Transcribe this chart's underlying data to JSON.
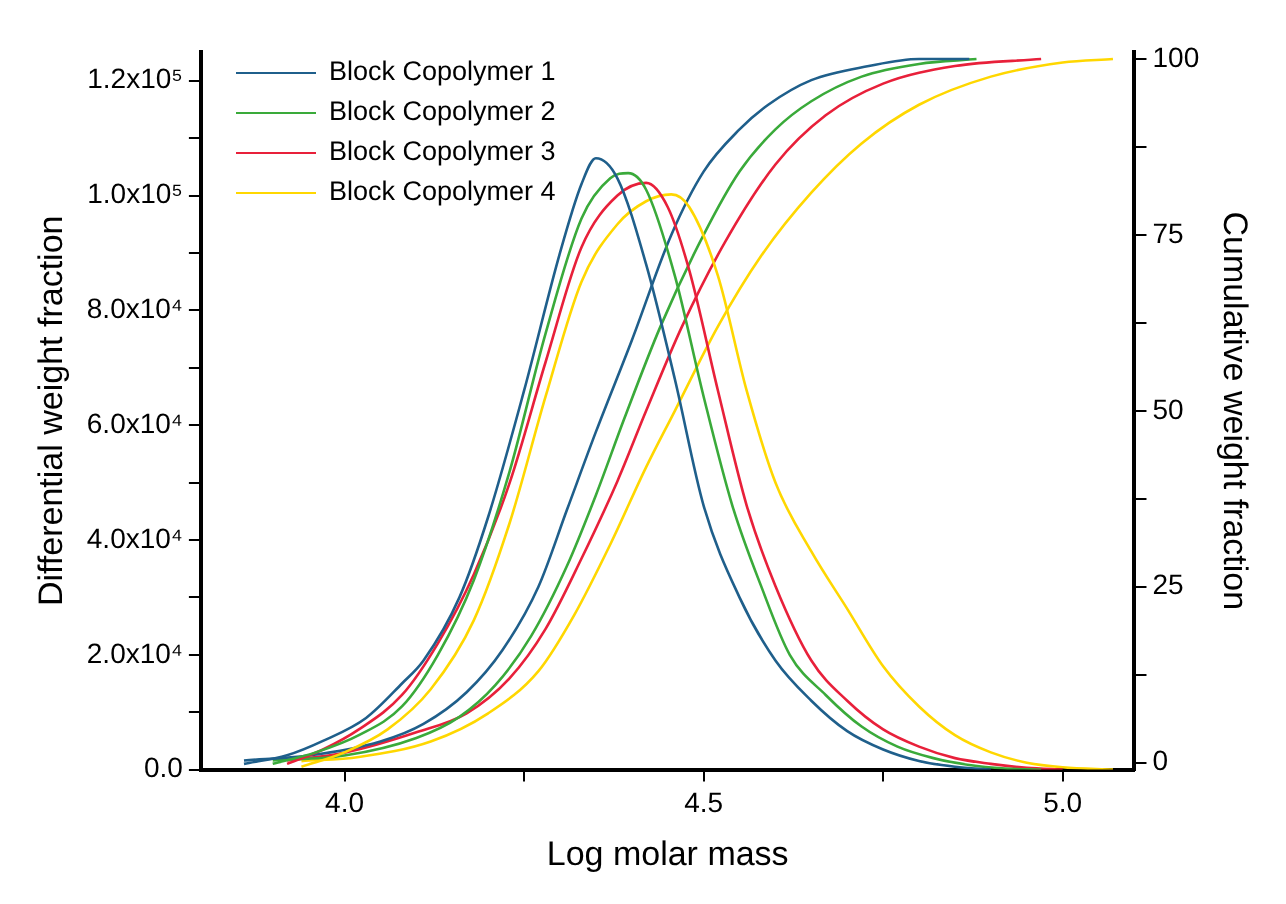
{
  "chart_data": {
    "type": "line",
    "xlabel": "Log molar mass",
    "ylabel": "Differential weight fraction",
    "y2label": "Cumulative weight fraction",
    "xlim": [
      3.8,
      5.1
    ],
    "xticks": [
      {
        "value": 4,
        "label": "4.0"
      },
      {
        "value": 4.25,
        "label": null
      },
      {
        "value": 4.5,
        "label": "4.5"
      },
      {
        "value": 4.75,
        "label": null
      },
      {
        "value": 5,
        "label": "5.0"
      }
    ],
    "ylim": [
      0,
      125000
    ],
    "yticks": [
      {
        "value": 0,
        "label": "0.0"
      },
      {
        "value": 10000,
        "label": null
      },
      {
        "value": 20000,
        "label": "2.0x10⁴"
      },
      {
        "value": 30000,
        "label": null
      },
      {
        "value": 40000,
        "label": "4.0x10⁴"
      },
      {
        "value": 50000,
        "label": null
      },
      {
        "value": 60000,
        "label": "6.0x10⁴"
      },
      {
        "value": 70000,
        "label": null
      },
      {
        "value": 80000,
        "label": "8.0x10⁴"
      },
      {
        "value": 90000,
        "label": null
      },
      {
        "value": 100000,
        "label": "1.0x10⁵"
      },
      {
        "value": 110000,
        "label": null
      },
      {
        "value": 120000,
        "label": "1.2x10⁵"
      }
    ],
    "y2lim": [
      -1,
      101
    ],
    "y2ticks": [
      0,
      {
        "value": 12.5,
        "label": null
      },
      25,
      {
        "value": 37.5,
        "label": null
      },
      50,
      {
        "value": 62.5,
        "label": null
      },
      75,
      {
        "value": 87.5,
        "label": null
      },
      100
    ],
    "grid": false,
    "legend": "top left",
    "marker": "none",
    "line_style": "solid",
    "series": [
      {
        "name": "Block Copolymer 1",
        "color": "#1f5f8b",
        "x": [
          3.86,
          3.92,
          3.97,
          4.03,
          4.08,
          4.11,
          4.16,
          4.2,
          4.25,
          4.3,
          4.33,
          4.35,
          4.38,
          4.42,
          4.46,
          4.5,
          4.55,
          4.6,
          4.65,
          4.7,
          4.75,
          4.8,
          4.85,
          4.9
        ],
        "values": [
          1000,
          2500,
          5000,
          9000,
          15000,
          19000,
          30000,
          44000,
          66000,
          90000,
          102000,
          106500,
          103000,
          88000,
          68000,
          46000,
          30000,
          19000,
          12000,
          6700,
          3500,
          1500,
          500,
          0
        ]
      },
      {
        "name": "Block Copolymer 2",
        "color": "#3aaa3a",
        "x": [
          3.9,
          3.96,
          4.02,
          4.08,
          4.13,
          4.18,
          4.23,
          4.28,
          4.33,
          4.37,
          4.395,
          4.42,
          4.46,
          4.5,
          4.54,
          4.58,
          4.62,
          4.67,
          4.72,
          4.77,
          4.82,
          4.87,
          4.92,
          4.97
        ],
        "values": [
          1000,
          3000,
          6000,
          11000,
          20000,
          33000,
          52000,
          76000,
          96000,
          103000,
          103900,
          101000,
          86000,
          65000,
          46000,
          32000,
          20000,
          13000,
          7500,
          4000,
          2000,
          800,
          200,
          0
        ]
      },
      {
        "name": "Block Copolymer 3",
        "color": "#e8203a",
        "x": [
          3.92,
          3.97,
          4.02,
          4.08,
          4.13,
          4.18,
          4.23,
          4.28,
          4.33,
          4.38,
          4.42,
          4.45,
          4.48,
          4.52,
          4.56,
          4.6,
          4.65,
          4.7,
          4.75,
          4.8,
          4.85,
          4.9,
          4.95,
          5.0
        ],
        "values": [
          1000,
          3500,
          7000,
          13000,
          22000,
          34000,
          50000,
          71000,
          91000,
          100000,
          102200,
          98000,
          87000,
          66000,
          46000,
          32000,
          19000,
          12000,
          7000,
          4000,
          2000,
          1000,
          300,
          0
        ]
      },
      {
        "name": "Block Copolymer 4",
        "color": "#ffd700",
        "x": [
          3.94,
          4.0,
          4.06,
          4.12,
          4.18,
          4.23,
          4.28,
          4.33,
          4.38,
          4.42,
          4.455,
          4.48,
          4.52,
          4.56,
          4.6,
          4.65,
          4.7,
          4.75,
          4.8,
          4.85,
          4.9,
          4.95,
          5.0,
          5.07
        ],
        "values": [
          500,
          3000,
          7000,
          14000,
          26000,
          43000,
          65000,
          85000,
          95000,
          99000,
          100200,
          98000,
          86000,
          66000,
          50000,
          38000,
          28000,
          18000,
          11000,
          6000,
          3000,
          1200,
          400,
          0
        ]
      },
      {
        "axis": "y2",
        "color": "#1f5f8b",
        "x": [
          3.86,
          3.95,
          4.05,
          4.11,
          4.17,
          4.22,
          4.27,
          4.31,
          4.35,
          4.4,
          4.455,
          4.5,
          4.55,
          4.59,
          4.65,
          4.73,
          4.8,
          4.87
        ],
        "values": [
          0.3,
          1,
          3,
          5.5,
          10,
          16,
          25,
          36,
          47,
          60,
          75,
          84,
          90,
          93.5,
          97,
          99,
          100,
          100
        ]
      },
      {
        "axis": "y2",
        "color": "#3aaa3a",
        "x": [
          3.9,
          4.0,
          4.1,
          4.16,
          4.21,
          4.26,
          4.31,
          4.35,
          4.39,
          4.44,
          4.5,
          4.55,
          4.6,
          4.65,
          4.72,
          4.8,
          4.88
        ],
        "values": [
          0.3,
          1,
          3.5,
          6.5,
          11,
          18,
          28,
          38,
          49,
          62,
          75,
          84,
          90,
          94,
          97.5,
          99.3,
          100
        ]
      },
      {
        "axis": "y2",
        "color": "#e8203a",
        "x": [
          3.92,
          4.0,
          4.1,
          4.17,
          4.23,
          4.28,
          4.33,
          4.38,
          4.42,
          4.47,
          4.53,
          4.6,
          4.67,
          4.75,
          4.85,
          4.97
        ],
        "values": [
          0.3,
          1.4,
          4.3,
          7,
          12,
          19,
          29,
          40,
          50,
          62,
          74,
          85,
          92,
          96.5,
          99,
          100
        ]
      },
      {
        "axis": "y2",
        "color": "#ffd700",
        "x": [
          3.94,
          4.02,
          4.12,
          4.2,
          4.27,
          4.32,
          4.37,
          4.42,
          4.46,
          4.52,
          4.58,
          4.65,
          4.72,
          4.8,
          4.9,
          5.0,
          5.07
        ],
        "values": [
          0.2,
          0.8,
          3,
          7,
          13,
          21,
          31,
          42,
          50,
          62,
          72,
          81,
          88,
          93.5,
          97.5,
          99.5,
          100
        ]
      }
    ]
  }
}
